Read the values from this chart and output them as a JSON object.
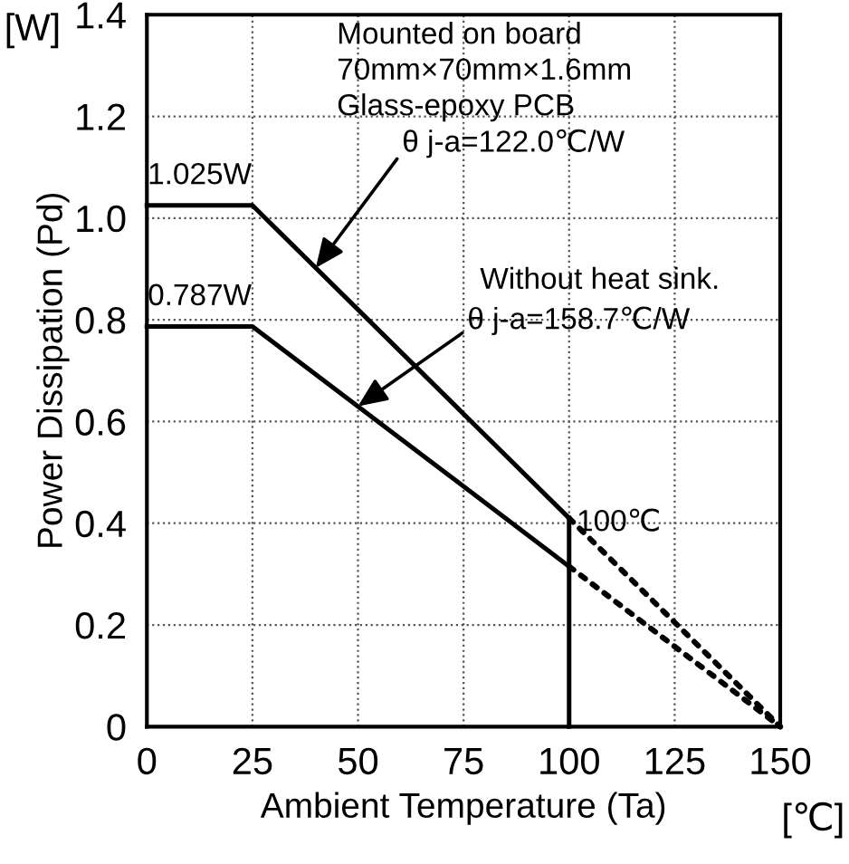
{
  "chart_data": {
    "type": "line",
    "xlabel": "Ambient Temperature (Ta)",
    "ylabel": "Power Dissipation (Pd)",
    "series": [
      {
        "color": "#000000",
        "x": [
          0,
          25,
          100
        ],
        "values": [
          1.025,
          1.025,
          0.41
        ],
        "line_style": "solid"
      },
      {
        "color": "#000000",
        "x": [
          100,
          150
        ],
        "values": [
          0.41,
          0
        ],
        "line_style": "dotted"
      },
      {
        "color": "#000000",
        "x": [
          0,
          25,
          100
        ],
        "values": [
          0.787,
          0.787,
          0.315
        ],
        "line_style": "solid"
      },
      {
        "color": "#000000",
        "x": [
          100,
          150
        ],
        "values": [
          0.315,
          0
        ],
        "line_style": "dotted"
      },
      {
        "color": "#000000",
        "x": [
          100,
          100
        ],
        "values": [
          0,
          0.41
        ],
        "line_style": "solid"
      }
    ],
    "xlim": [
      0,
      150
    ],
    "xticks": [
      0,
      25,
      50,
      75,
      100,
      125,
      150
    ],
    "ylim": [
      0,
      1.4
    ],
    "yticks": [
      0,
      0.2,
      0.4,
      0.6,
      0.8,
      {
        "value": 1,
        "label": "1.0"
      },
      1.2,
      1.4
    ],
    "grid": true,
    "marker": "none",
    "legend": false,
    "annotations": [
      {
        "text": "1.025W",
        "x": 12.5,
        "y": 1.025
      },
      {
        "text": "0.787W",
        "x": 12.5,
        "y": 0.787
      },
      {
        "text": "100℃",
        "x": 100,
        "y": 0.41
      },
      "Mounted on board\n70mm×70mm×1.6mm\nGlass-epoxy PCB",
      {
        "text": "θ j-a=122.0℃/W",
        "x": 40,
        "y": 0.902
      },
      "Without heat sink.",
      {
        "text": "θ j-a=158.7℃/W",
        "x": 50,
        "y": 0.63
      },
      "[W]",
      "[℃]"
    ]
  }
}
